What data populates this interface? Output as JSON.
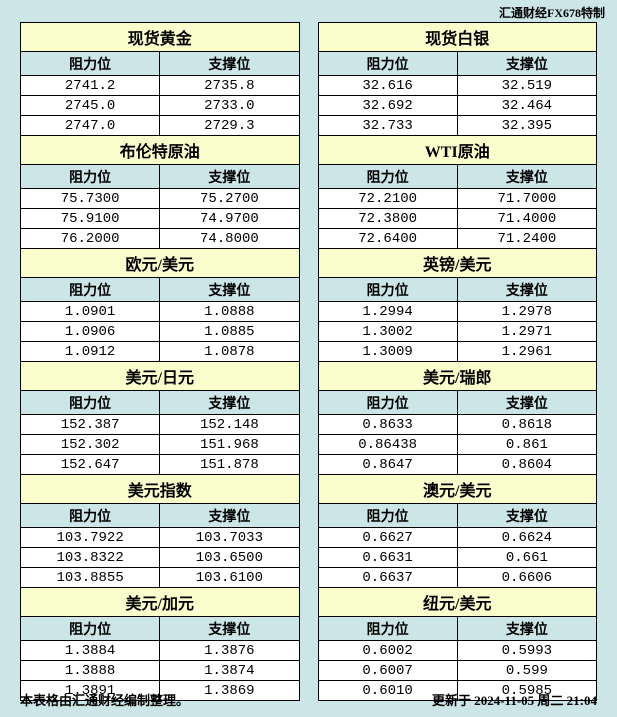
{
  "watermark": "汇通财经FX678特制",
  "headers": {
    "resistance": "阻力位",
    "support": "支撑位"
  },
  "footer": {
    "left": "本表格由汇通财经编制整理。",
    "right": "更新于 2024-11-05 周二 21:04"
  },
  "colors": {
    "page_bg": "#cce5e6",
    "title_bg": "#fafecd",
    "header_bg": "#cce5e6",
    "data_bg": "#ffffff",
    "border": "#000000"
  },
  "left_column": [
    {
      "title": "现货黄金",
      "rows": [
        [
          "2741.2",
          "2735.8"
        ],
        [
          "2745.0",
          "2733.0"
        ],
        [
          "2747.0",
          "2729.3"
        ]
      ]
    },
    {
      "title": "布伦特原油",
      "rows": [
        [
          "75.7300",
          "75.2700"
        ],
        [
          "75.9100",
          "74.9700"
        ],
        [
          "76.2000",
          "74.8000"
        ]
      ]
    },
    {
      "title": "欧元/美元",
      "rows": [
        [
          "1.0901",
          "1.0888"
        ],
        [
          "1.0906",
          "1.0885"
        ],
        [
          "1.0912",
          "1.0878"
        ]
      ]
    },
    {
      "title": "美元/日元",
      "rows": [
        [
          "152.387",
          "152.148"
        ],
        [
          "152.302",
          "151.968"
        ],
        [
          "152.647",
          "151.878"
        ]
      ]
    },
    {
      "title": "美元指数",
      "rows": [
        [
          "103.7922",
          "103.7033"
        ],
        [
          "103.8322",
          "103.6500"
        ],
        [
          "103.8855",
          "103.6100"
        ]
      ]
    },
    {
      "title": "美元/加元",
      "rows": [
        [
          "1.3884",
          "1.3876"
        ],
        [
          "1.3888",
          "1.3874"
        ],
        [
          "1.3891",
          "1.3869"
        ]
      ]
    }
  ],
  "right_column": [
    {
      "title": "现货白银",
      "rows": [
        [
          "32.616",
          "32.519"
        ],
        [
          "32.692",
          "32.464"
        ],
        [
          "32.733",
          "32.395"
        ]
      ]
    },
    {
      "title": "WTI原油",
      "rows": [
        [
          "72.2100",
          "71.7000"
        ],
        [
          "72.3800",
          "71.4000"
        ],
        [
          "72.6400",
          "71.2400"
        ]
      ]
    },
    {
      "title": "英镑/美元",
      "rows": [
        [
          "1.2994",
          "1.2978"
        ],
        [
          "1.3002",
          "1.2971"
        ],
        [
          "1.3009",
          "1.2961"
        ]
      ]
    },
    {
      "title": "美元/瑞郎",
      "rows": [
        [
          "0.8633",
          "0.8618"
        ],
        [
          "0.86438",
          "0.861"
        ],
        [
          "0.8647",
          "0.8604"
        ]
      ]
    },
    {
      "title": "澳元/美元",
      "rows": [
        [
          "0.6627",
          "0.6624"
        ],
        [
          "0.6631",
          "0.661"
        ],
        [
          "0.6637",
          "0.6606"
        ]
      ]
    },
    {
      "title": "纽元/美元",
      "rows": [
        [
          "0.6002",
          "0.5993"
        ],
        [
          "0.6007",
          "0.599"
        ],
        [
          "0.6010",
          "0.5985"
        ]
      ]
    }
  ]
}
